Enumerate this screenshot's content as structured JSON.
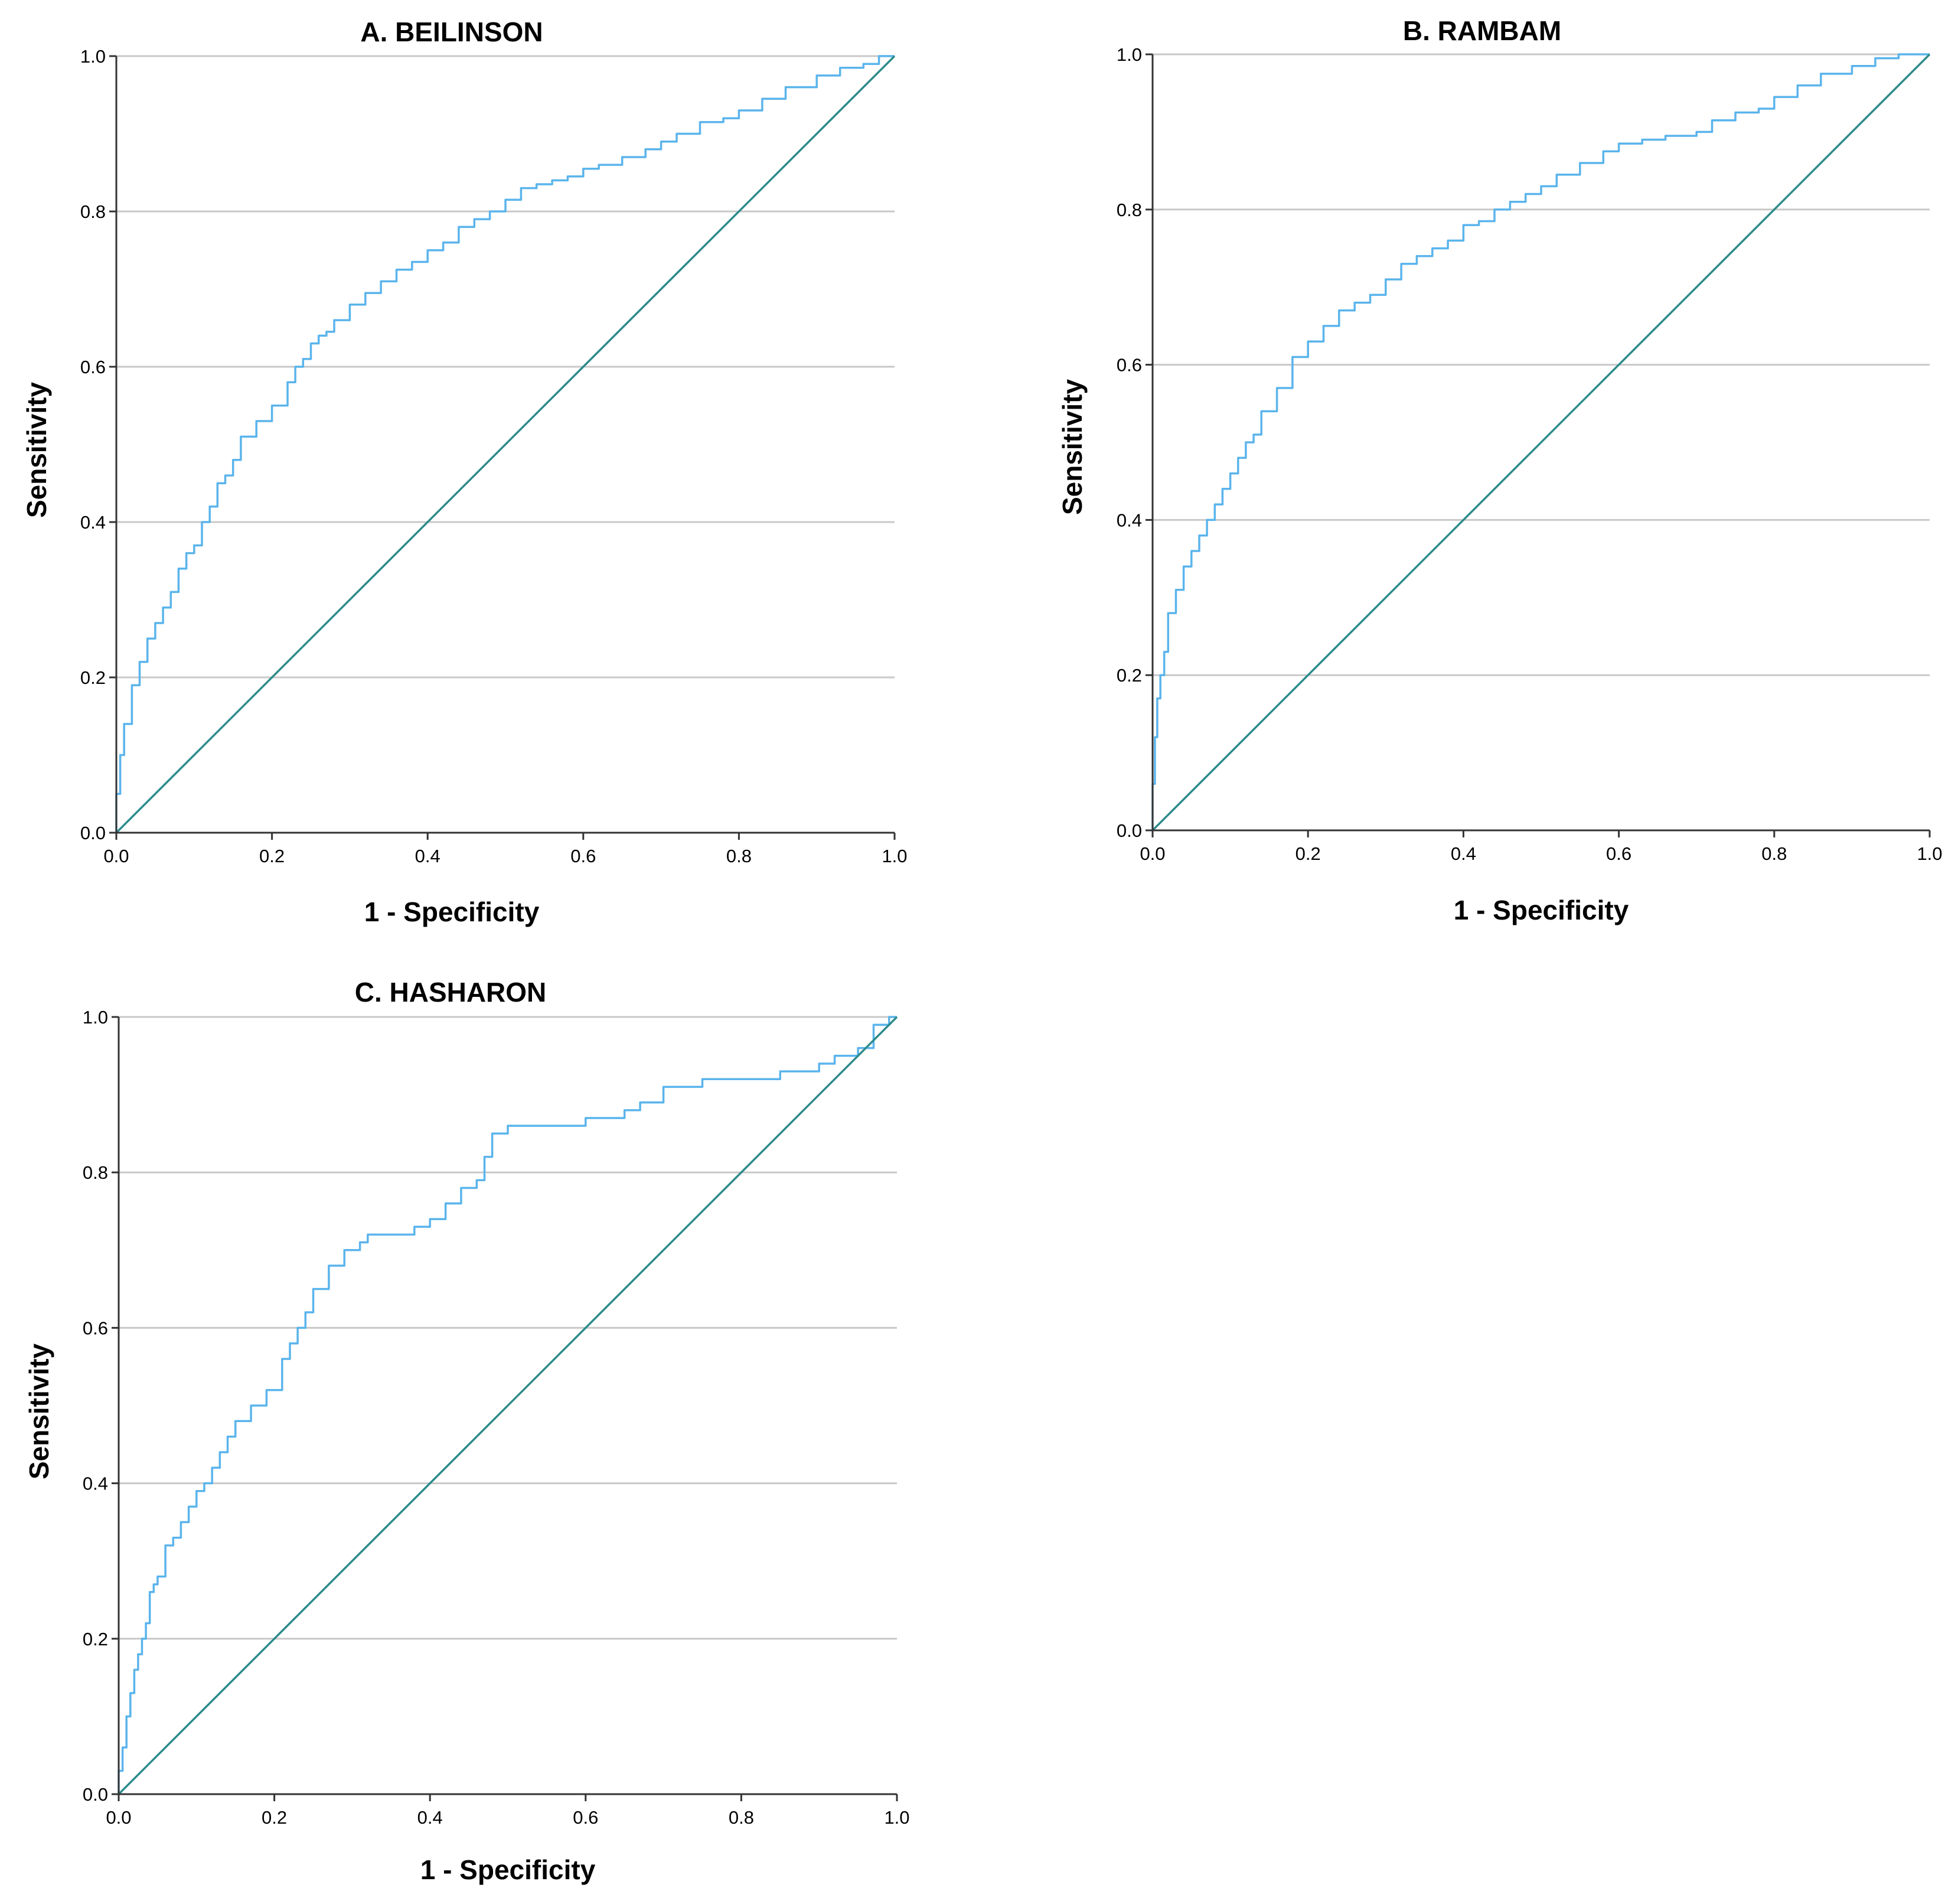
{
  "colors": {
    "roc_curve": "#5AB4EC",
    "reference_line": "#2E8B8B",
    "grid": "#C8C8C8",
    "axis": "#333333"
  },
  "chart_data": [
    {
      "type": "line",
      "title": "A. BEILINSON",
      "xlabel": "1 - Specificity",
      "ylabel": "Sensitivity",
      "xlim": [
        0,
        1
      ],
      "ylim": [
        0,
        1
      ],
      "xticks": [
        "0.0",
        "0.2",
        "0.4",
        "0.6",
        "0.8",
        "1.0"
      ],
      "yticks": [
        "0.0",
        "0.2",
        "0.4",
        "0.6",
        "0.8",
        "1.0"
      ],
      "grid": "horizontal",
      "series": [
        {
          "name": "ROC curve",
          "x": [
            0,
            0.005,
            0.01,
            0.02,
            0.03,
            0.04,
            0.05,
            0.06,
            0.07,
            0.08,
            0.09,
            0.1,
            0.11,
            0.12,
            0.13,
            0.14,
            0.15,
            0.16,
            0.18,
            0.2,
            0.22,
            0.23,
            0.24,
            0.25,
            0.26,
            0.27,
            0.28,
            0.3,
            0.32,
            0.34,
            0.36,
            0.38,
            0.4,
            0.42,
            0.44,
            0.46,
            0.48,
            0.5,
            0.52,
            0.54,
            0.56,
            0.58,
            0.6,
            0.62,
            0.65,
            0.68,
            0.7,
            0.72,
            0.75,
            0.78,
            0.8,
            0.83,
            0.86,
            0.9,
            0.93,
            0.96,
            0.98,
            1.0
          ],
          "y": [
            0,
            0.05,
            0.1,
            0.14,
            0.19,
            0.22,
            0.25,
            0.27,
            0.29,
            0.31,
            0.34,
            0.36,
            0.37,
            0.4,
            0.42,
            0.45,
            0.46,
            0.48,
            0.51,
            0.53,
            0.55,
            0.58,
            0.6,
            0.61,
            0.63,
            0.64,
            0.645,
            0.66,
            0.68,
            0.695,
            0.71,
            0.725,
            0.735,
            0.75,
            0.76,
            0.78,
            0.79,
            0.8,
            0.815,
            0.83,
            0.835,
            0.84,
            0.845,
            0.855,
            0.86,
            0.87,
            0.88,
            0.89,
            0.9,
            0.915,
            0.92,
            0.93,
            0.945,
            0.96,
            0.975,
            0.985,
            0.99,
            1.0
          ]
        },
        {
          "name": "Reference line",
          "x": [
            0,
            1
          ],
          "y": [
            0,
            1
          ]
        }
      ]
    },
    {
      "type": "line",
      "title": "B. RAMBAM",
      "xlabel": "1 - Specificity",
      "ylabel": "Sensitivity",
      "xlim": [
        0,
        1
      ],
      "ylim": [
        0,
        1
      ],
      "xticks": [
        "0.0",
        "0.2",
        "0.4",
        "0.6",
        "0.8",
        "1.0"
      ],
      "yticks": [
        "0.0",
        "0.2",
        "0.4",
        "0.6",
        "0.8",
        "1.0"
      ],
      "grid": "horizontal",
      "series": [
        {
          "name": "ROC curve",
          "x": [
            0,
            0.003,
            0.006,
            0.01,
            0.015,
            0.02,
            0.03,
            0.04,
            0.05,
            0.06,
            0.07,
            0.08,
            0.09,
            0.1,
            0.11,
            0.12,
            0.13,
            0.14,
            0.16,
            0.18,
            0.2,
            0.22,
            0.24,
            0.26,
            0.28,
            0.3,
            0.32,
            0.34,
            0.36,
            0.38,
            0.4,
            0.42,
            0.44,
            0.46,
            0.48,
            0.5,
            0.52,
            0.55,
            0.58,
            0.6,
            0.63,
            0.66,
            0.7,
            0.72,
            0.75,
            0.78,
            0.8,
            0.83,
            0.86,
            0.9,
            0.93,
            0.96,
            1.0
          ],
          "y": [
            0,
            0.06,
            0.12,
            0.17,
            0.2,
            0.23,
            0.28,
            0.31,
            0.34,
            0.36,
            0.38,
            0.4,
            0.42,
            0.44,
            0.46,
            0.48,
            0.5,
            0.51,
            0.54,
            0.57,
            0.61,
            0.63,
            0.65,
            0.67,
            0.68,
            0.69,
            0.71,
            0.73,
            0.74,
            0.75,
            0.76,
            0.78,
            0.785,
            0.8,
            0.81,
            0.82,
            0.83,
            0.845,
            0.86,
            0.875,
            0.885,
            0.89,
            0.895,
            0.9,
            0.915,
            0.925,
            0.93,
            0.945,
            0.96,
            0.975,
            0.985,
            0.995,
            1.0
          ]
        },
        {
          "name": "Reference line",
          "x": [
            0,
            1
          ],
          "y": [
            0,
            1
          ]
        }
      ]
    },
    {
      "type": "line",
      "title": "C. HASHARON",
      "xlabel": "1 - Specificity",
      "ylabel": "Sensitivity",
      "xlim": [
        0,
        1
      ],
      "ylim": [
        0,
        1
      ],
      "xticks": [
        "0.0",
        "0.2",
        "0.4",
        "0.6",
        "0.8",
        "1.0"
      ],
      "yticks": [
        "0.0",
        "0.2",
        "0.4",
        "0.6",
        "0.8",
        "1.0"
      ],
      "grid": "horizontal",
      "series": [
        {
          "name": "ROC curve",
          "x": [
            0,
            0.005,
            0.01,
            0.015,
            0.02,
            0.025,
            0.03,
            0.035,
            0.04,
            0.045,
            0.05,
            0.06,
            0.07,
            0.08,
            0.09,
            0.1,
            0.11,
            0.12,
            0.13,
            0.14,
            0.15,
            0.17,
            0.19,
            0.21,
            0.22,
            0.23,
            0.24,
            0.25,
            0.27,
            0.29,
            0.31,
            0.32,
            0.34,
            0.38,
            0.4,
            0.42,
            0.44,
            0.46,
            0.47,
            0.48,
            0.5,
            0.52,
            0.56,
            0.6,
            0.65,
            0.67,
            0.7,
            0.75,
            0.8,
            0.85,
            0.88,
            0.9,
            0.92,
            0.95,
            0.97,
            0.99,
            1.0
          ],
          "y": [
            0,
            0.03,
            0.06,
            0.1,
            0.13,
            0.16,
            0.18,
            0.2,
            0.22,
            0.26,
            0.27,
            0.28,
            0.32,
            0.33,
            0.35,
            0.37,
            0.39,
            0.4,
            0.42,
            0.44,
            0.46,
            0.48,
            0.5,
            0.52,
            0.56,
            0.58,
            0.6,
            0.62,
            0.65,
            0.68,
            0.7,
            0.71,
            0.72,
            0.72,
            0.73,
            0.74,
            0.76,
            0.78,
            0.79,
            0.82,
            0.85,
            0.86,
            0.86,
            0.86,
            0.87,
            0.88,
            0.89,
            0.91,
            0.92,
            0.92,
            0.93,
            0.93,
            0.94,
            0.95,
            0.96,
            0.99,
            1.0
          ]
        },
        {
          "name": "Reference line",
          "x": [
            0,
            1
          ],
          "y": [
            0,
            1
          ]
        }
      ]
    }
  ]
}
